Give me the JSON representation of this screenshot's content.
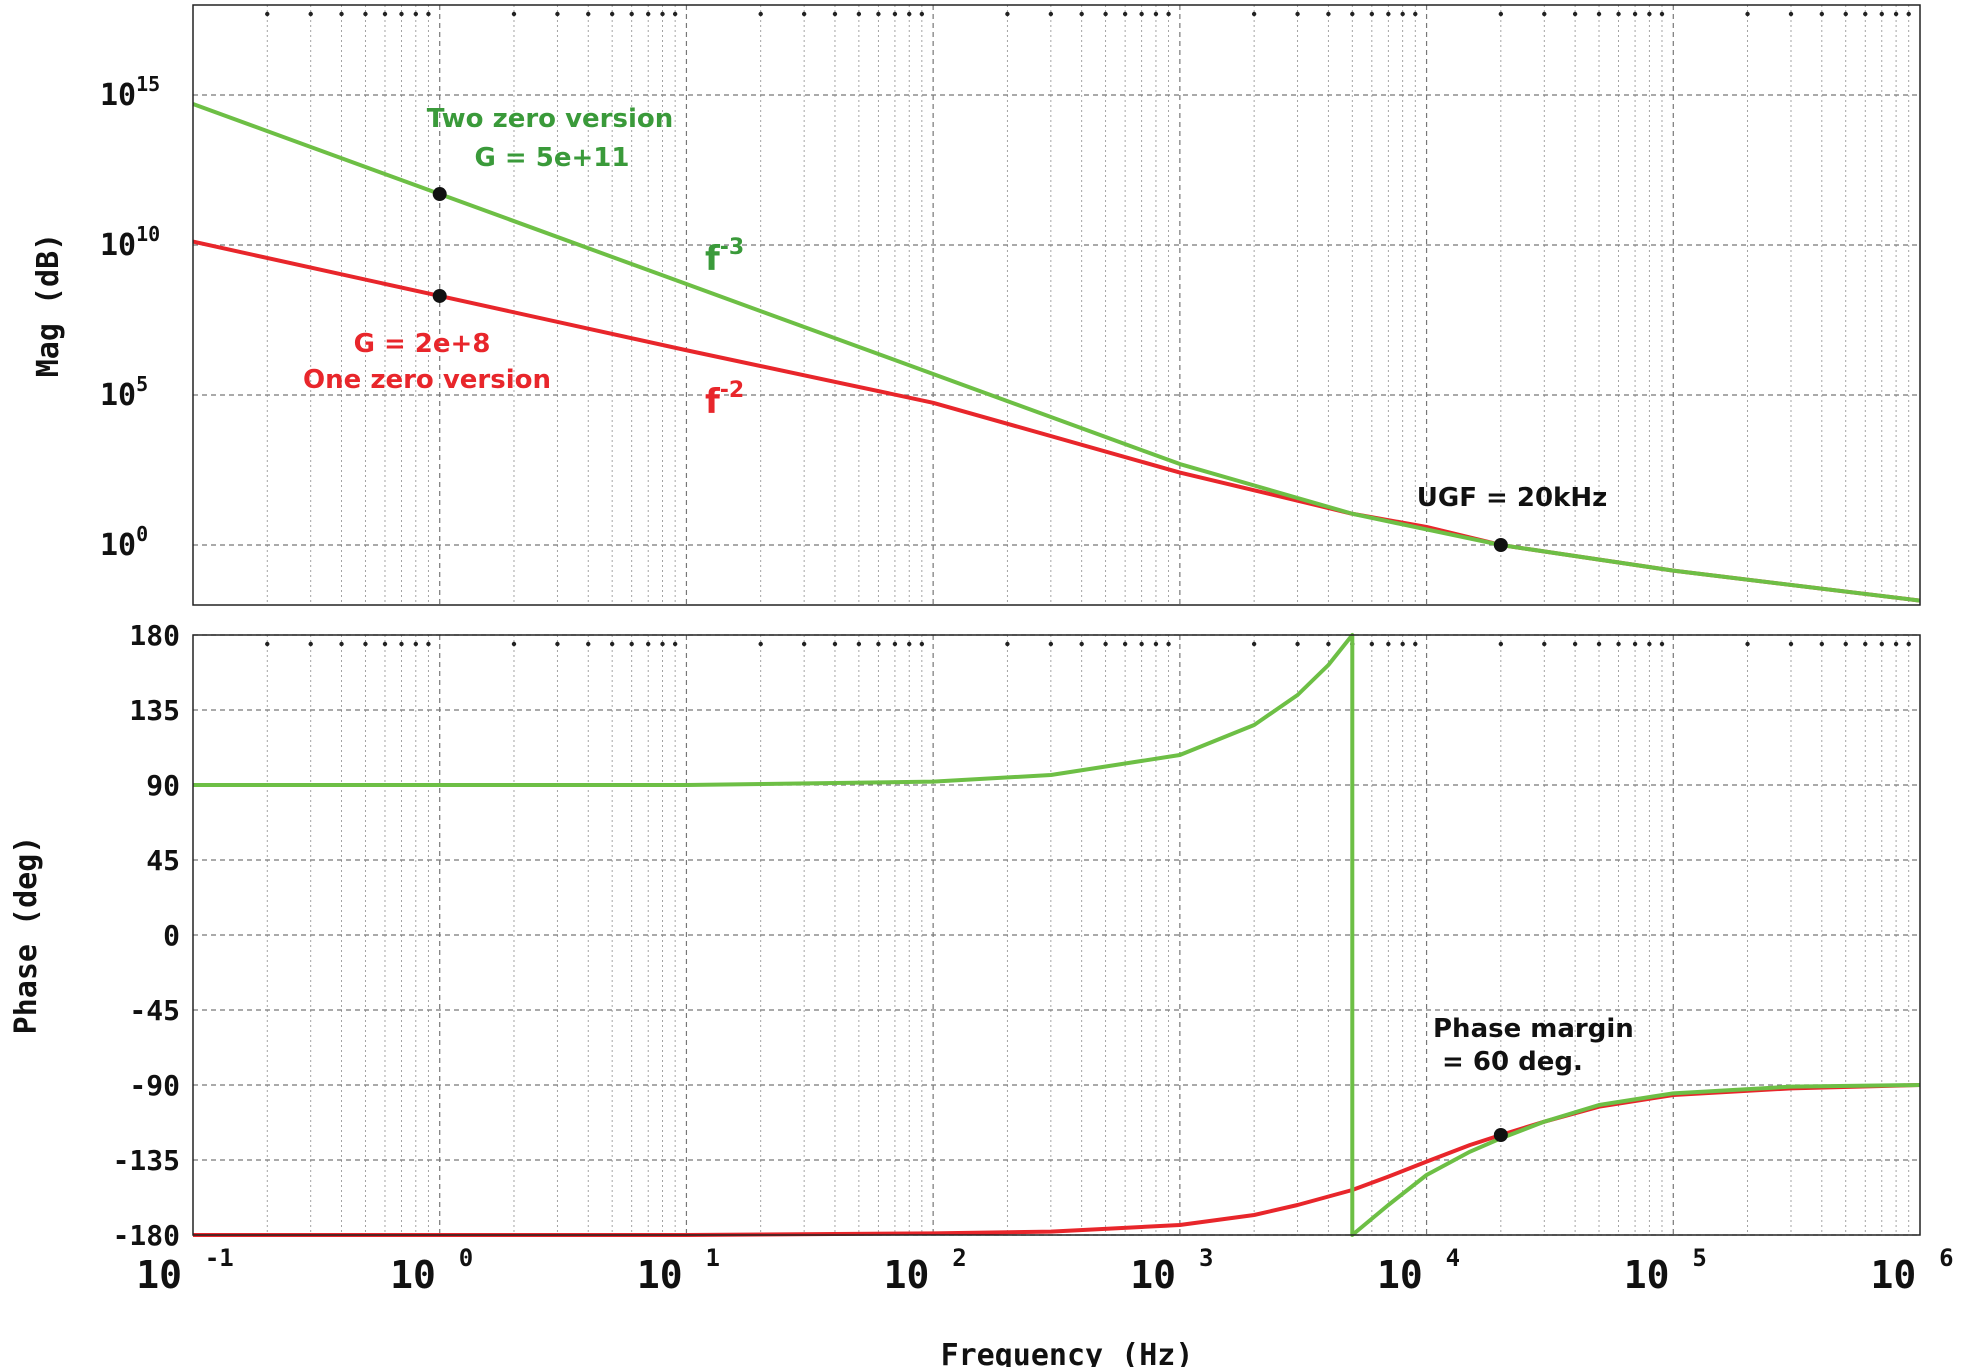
{
  "chart_data": [
    {
      "type": "line",
      "panel": "magnitude",
      "ylabel": "Mag (dB)",
      "x_scale": "log",
      "y_scale": "log",
      "xlim": [
        0.1,
        1000000
      ],
      "ylim": [
        0.01,
        1e+18
      ],
      "y_tick_values": [
        1,
        100000,
        10000000000,
        1000000000000000
      ],
      "y_tick_labels": [
        {
          "base": "10",
          "exp": "0"
        },
        {
          "base": "10",
          "exp": "5"
        },
        {
          "base": "10",
          "exp": "10"
        },
        {
          "base": "10",
          "exp": "15"
        }
      ],
      "grid": true,
      "series": [
        {
          "color": "#e8262b",
          "x": [
            0.1,
            1,
            10,
            100,
            1000,
            5000,
            10000,
            20000,
            100000,
            1000000
          ],
          "y": [
            13000000000.0,
            200000000.0,
            3100000.0,
            55000.0,
            260.0,
            11.0,
            4.0,
            1.0,
            0.14,
            0.014
          ]
        },
        {
          "color": "#6dbf45",
          "x": [
            0.1,
            1,
            10,
            100,
            1000,
            5000,
            10000,
            20000,
            100000,
            1000000
          ],
          "y": [
            500000000000000.0,
            500000000000.0,
            500000000.0,
            500000.0,
            500.0,
            11.0,
            3.3,
            1.0,
            0.14,
            0.014
          ]
        }
      ],
      "markers": [
        {
          "x": 1,
          "y": 500000000000.0
        },
        {
          "x": 1,
          "y": 200000000.0
        },
        {
          "x": 20000,
          "y": 1
        }
      ],
      "annotations": [
        {
          "lines": [
            "Two zero version",
            "G = 5e+11"
          ],
          "color": "#3a9a3a"
        },
        {
          "lines": [
            "G = 2e+8",
            "One zero version"
          ],
          "color": "#e8262b"
        },
        {
          "text": "f",
          "sup": "-3",
          "color": "#3a9a3a"
        },
        {
          "text": "f",
          "sup": "-2",
          "color": "#e8262b"
        },
        {
          "text": "UGF = 20kHz",
          "color": "#111111"
        }
      ]
    },
    {
      "type": "line",
      "panel": "phase",
      "ylabel": "Phase (deg)",
      "xlabel": "Frequency (Hz)",
      "x_scale": "log",
      "xlim": [
        0.1,
        1000000
      ],
      "ylim": [
        -180,
        180
      ],
      "y_ticks": [
        180,
        135,
        90,
        45,
        0,
        -45,
        -90,
        -135,
        -180
      ],
      "x_tick_values": [
        0.1,
        1,
        10,
        100,
        1000,
        10000,
        100000,
        1000000
      ],
      "x_tick_labels": [
        {
          "base": "10",
          "exp": "-1"
        },
        {
          "base": "10",
          "exp": "0"
        },
        {
          "base": "10",
          "exp": "1"
        },
        {
          "base": "10",
          "exp": "2"
        },
        {
          "base": "10",
          "exp": "3"
        },
        {
          "base": "10",
          "exp": "4"
        },
        {
          "base": "10",
          "exp": "5"
        },
        {
          "base": "10",
          "exp": "6"
        }
      ],
      "grid": true,
      "series": [
        {
          "color": "#e8262b",
          "x": [
            0.1,
            10,
            100,
            300,
            1000,
            2000,
            3000,
            5000,
            7000,
            10000,
            15000,
            20000,
            30000,
            50000,
            100000,
            300000,
            1000000
          ],
          "y": [
            -180,
            -180,
            -179,
            -178,
            -174,
            -168,
            -162,
            -153,
            -145,
            -136,
            -126,
            -120,
            -112,
            -103,
            -96,
            -92,
            -90
          ]
        },
        {
          "color": "#6dbf45",
          "x": [
            0.1,
            10,
            100,
            300,
            1000,
            2000,
            3000,
            4000,
            5000,
            5000,
            7000,
            10000,
            15000,
            20000,
            30000,
            50000,
            100000,
            300000,
            1000000
          ],
          "y": [
            90,
            90,
            92,
            96,
            108,
            126,
            144,
            162,
            180,
            -180,
            -162,
            -144,
            -130,
            -122,
            -112,
            -102,
            -95,
            -91,
            -90
          ]
        }
      ],
      "markers": [
        {
          "x": 20000,
          "y": -120
        }
      ],
      "annotations": [
        {
          "lines": [
            "Phase margin",
            " = 60 deg."
          ],
          "color": "#111111"
        }
      ]
    }
  ]
}
